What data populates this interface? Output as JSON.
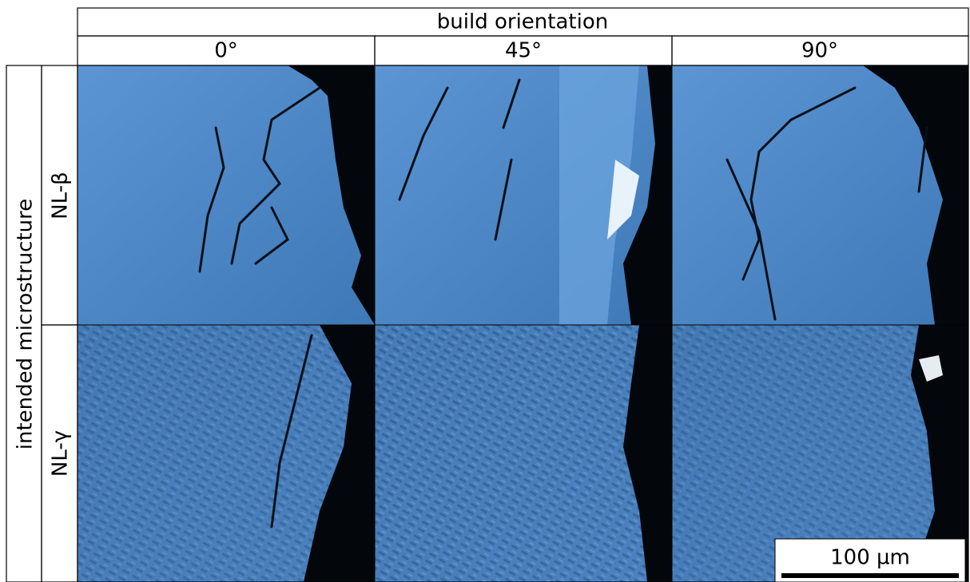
{
  "header": {
    "title": "build orientation",
    "columns": [
      "0°",
      "45°",
      "90°"
    ]
  },
  "rows": {
    "title": "intended microstructure",
    "labels": [
      "NL-β",
      "NL-γ"
    ]
  },
  "scale_bar": {
    "label": "100 µm"
  }
}
